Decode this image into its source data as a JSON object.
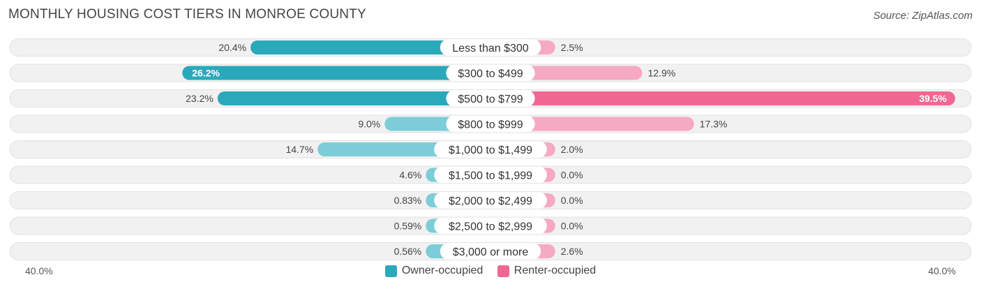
{
  "header": {
    "title": "MONTHLY HOUSING COST TIERS IN MONROE COUNTY",
    "source": "Source: ZipAtlas.com"
  },
  "colors": {
    "owner": "#2aa9bb",
    "owner_light": "#7ccdd8",
    "renter": "#f06892",
    "renter_light": "#f6a9c2",
    "track": "#f1f1f1"
  },
  "chart_data": {
    "type": "bar",
    "orientation": "horizontal-diverging",
    "title": "MONTHLY HOUSING COST TIERS IN MONROE COUNTY",
    "categories": [
      "Less than $300",
      "$300 to $499",
      "$500 to $799",
      "$800 to $999",
      "$1,000 to $1,499",
      "$1,500 to $1,999",
      "$2,000 to $2,499",
      "$2,500 to $2,999",
      "$3,000 or more"
    ],
    "series": [
      {
        "name": "Owner-occupied",
        "side": "left",
        "values": [
          20.4,
          26.2,
          23.2,
          9.0,
          14.7,
          4.6,
          0.83,
          0.59,
          0.56
        ],
        "labels": [
          "20.4%",
          "26.2%",
          "23.2%",
          "9.0%",
          "14.7%",
          "4.6%",
          "0.83%",
          "0.59%",
          "0.56%"
        ]
      },
      {
        "name": "Renter-occupied",
        "side": "right",
        "values": [
          2.5,
          12.9,
          39.5,
          17.3,
          2.0,
          0.0,
          0.0,
          0.0,
          2.6
        ],
        "labels": [
          "2.5%",
          "12.9%",
          "39.5%",
          "17.3%",
          "2.0%",
          "0.0%",
          "0.0%",
          "0.0%",
          "2.6%"
        ]
      }
    ],
    "xlim": [
      -40,
      40
    ],
    "axis_labels": {
      "left": "40.0%",
      "right": "40.0%"
    },
    "legend": {
      "position": "bottom-center",
      "items": [
        "Owner-occupied",
        "Renter-occupied"
      ]
    }
  }
}
